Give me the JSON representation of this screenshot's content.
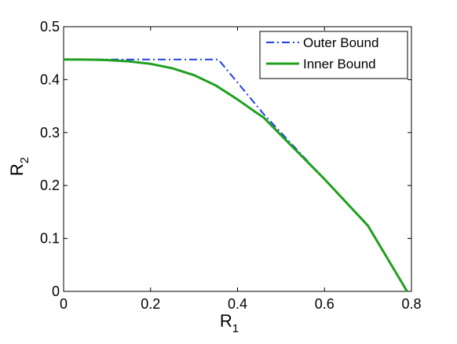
{
  "chart_data": {
    "type": "line",
    "title": "",
    "xlabel": "R",
    "xlabel_sub": "1",
    "ylabel": "R",
    "ylabel_sub": "2",
    "xlim": [
      0,
      0.8
    ],
    "ylim": [
      0,
      0.5
    ],
    "xticks": [
      "0",
      "0.2",
      "0.4",
      "0.6",
      "0.8"
    ],
    "yticks": [
      "0",
      "0.1",
      "0.2",
      "0.3",
      "0.4",
      "0.5"
    ],
    "grid": false,
    "legend_position": "top-right",
    "series": [
      {
        "name": "Outer Bound",
        "color": "#1f3ee8",
        "style": "dash-dot",
        "x": [
          0,
          0.2,
          0.356,
          0.46,
          0.6,
          0.7,
          0.79
        ],
        "y": [
          0.438,
          0.438,
          0.438,
          0.335,
          0.212,
          0.124,
          0.0
        ]
      },
      {
        "name": "Inner Bound",
        "color": "#1fa01f",
        "style": "solid",
        "x": [
          0,
          0.05,
          0.1,
          0.15,
          0.2,
          0.25,
          0.3,
          0.35,
          0.4,
          0.44,
          0.46,
          0.5,
          0.6,
          0.7,
          0.79
        ],
        "y": [
          0.438,
          0.4378,
          0.437,
          0.4345,
          0.4298,
          0.4215,
          0.4085,
          0.389,
          0.3625,
          0.3395,
          0.3285,
          0.295,
          0.212,
          0.124,
          0.0
        ]
      }
    ]
  }
}
